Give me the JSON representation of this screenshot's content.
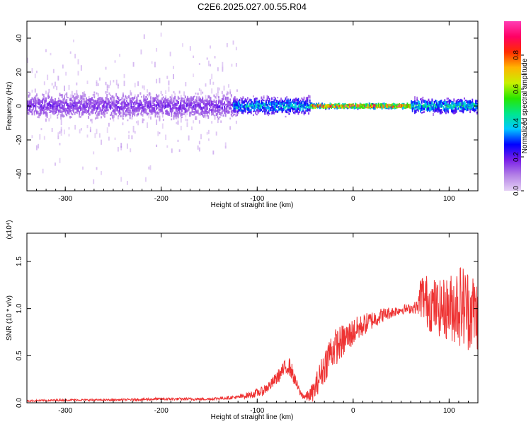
{
  "title": "C2E6.2025.027.00.55.R04",
  "chart_data": [
    {
      "type": "heatmap",
      "xlabel": "Height of straight line (km)",
      "ylabel": "Frequency (Hz)",
      "xlim": [
        -340,
        130
      ],
      "ylim": [
        -50,
        50
      ],
      "x_ticks": [
        -300,
        -200,
        -100,
        0,
        100
      ],
      "x_tick_labels": [
        "-300",
        "-200",
        "-100",
        "0",
        "100"
      ],
      "y_ticks": [
        -40,
        -20,
        0,
        20,
        40
      ],
      "y_tick_labels": [
        "-40",
        "-20",
        "0",
        "20",
        "40"
      ],
      "colorbar": {
        "label": "Normalized spectral amplitude",
        "range": [
          0,
          1
        ],
        "ticks": [
          0,
          0.2,
          0.4,
          0.6,
          0.8
        ],
        "tick_labels": [
          "0.0",
          "0.2",
          "0.4",
          "0.6",
          "0.8"
        ],
        "colormap": [
          "#e6d2f5",
          "#b482e6",
          "#7a1fe8",
          "#0000ff",
          "#00c8ff",
          "#00e68c",
          "#28e600",
          "#c8f000",
          "#ffb400",
          "#ff2d00",
          "#ff0064",
          "#ff3cb4"
        ]
      },
      "features": [
        {
          "x_range": [
            -340,
            -120
          ],
          "freq_center": 0,
          "freq_halfwidth": 50,
          "amplitude": 0.1,
          "note": "diffuse scattered noise"
        },
        {
          "x_range": [
            -340,
            -120
          ],
          "freq_center": 0,
          "freq_halfwidth": 9,
          "amplitude": 0.2
        },
        {
          "x_range": [
            -125,
            -45
          ],
          "freq_center": 0,
          "freq_halfwidth": 6,
          "amplitude": 0.45
        },
        {
          "x_range": [
            -45,
            60
          ],
          "freq_center": 0,
          "freq_halfwidth": 1.5,
          "amplitude": 0.95
        },
        {
          "x_range": [
            60,
            130
          ],
          "freq_center": 0,
          "freq_halfwidth": 5,
          "amplitude": 0.5
        }
      ],
      "grid": false
    },
    {
      "type": "line",
      "xlabel": "Height of straight line (km)",
      "ylabel": "SNR (10 * v/v)",
      "y_multiplier": "(x10⁴)",
      "xlim": [
        -340,
        130
      ],
      "ylim": [
        0,
        1.8
      ],
      "x_ticks": [
        -300,
        -200,
        -100,
        0,
        100
      ],
      "x_tick_labels": [
        "-300",
        "-200",
        "-100",
        "0",
        "100"
      ],
      "y_ticks": [
        0,
        0.5,
        1.0,
        1.5
      ],
      "y_tick_labels": [
        "0.0",
        "0.5",
        "1.0",
        "1.5"
      ],
      "series": [
        {
          "color": "#ee3333",
          "x": [
            -340,
            -300,
            -250,
            -200,
            -150,
            -120,
            -105,
            -95,
            -85,
            -75,
            -68,
            -65,
            -60,
            -55,
            -50,
            -45,
            -40,
            -35,
            -30,
            -25,
            -20,
            -10,
            0,
            10,
            20,
            30,
            40,
            50,
            60,
            68,
            70,
            80,
            90,
            100,
            110,
            120,
            130
          ],
          "y": [
            0.02,
            0.03,
            0.03,
            0.04,
            0.04,
            0.06,
            0.09,
            0.12,
            0.2,
            0.32,
            0.4,
            0.36,
            0.22,
            0.1,
            0.06,
            0.08,
            0.14,
            0.28,
            0.38,
            0.52,
            0.58,
            0.66,
            0.75,
            0.82,
            0.88,
            0.93,
            0.96,
            0.99,
            1.0,
            1.02,
            1.15,
            1.05,
            1.0,
            1.0,
            1.05,
            1.0,
            0.95
          ],
          "noise_amplitude": [
            0.01,
            0.01,
            0.01,
            0.015,
            0.015,
            0.02,
            0.04,
            0.05,
            0.06,
            0.08,
            0.1,
            0.1,
            0.06,
            0.04,
            0.04,
            0.08,
            0.12,
            0.15,
            0.18,
            0.2,
            0.2,
            0.18,
            0.15,
            0.12,
            0.1,
            0.08,
            0.06,
            0.05,
            0.05,
            0.08,
            0.25,
            0.3,
            0.3,
            0.35,
            0.45,
            0.45,
            0.4
          ]
        }
      ],
      "grid": false
    }
  ]
}
